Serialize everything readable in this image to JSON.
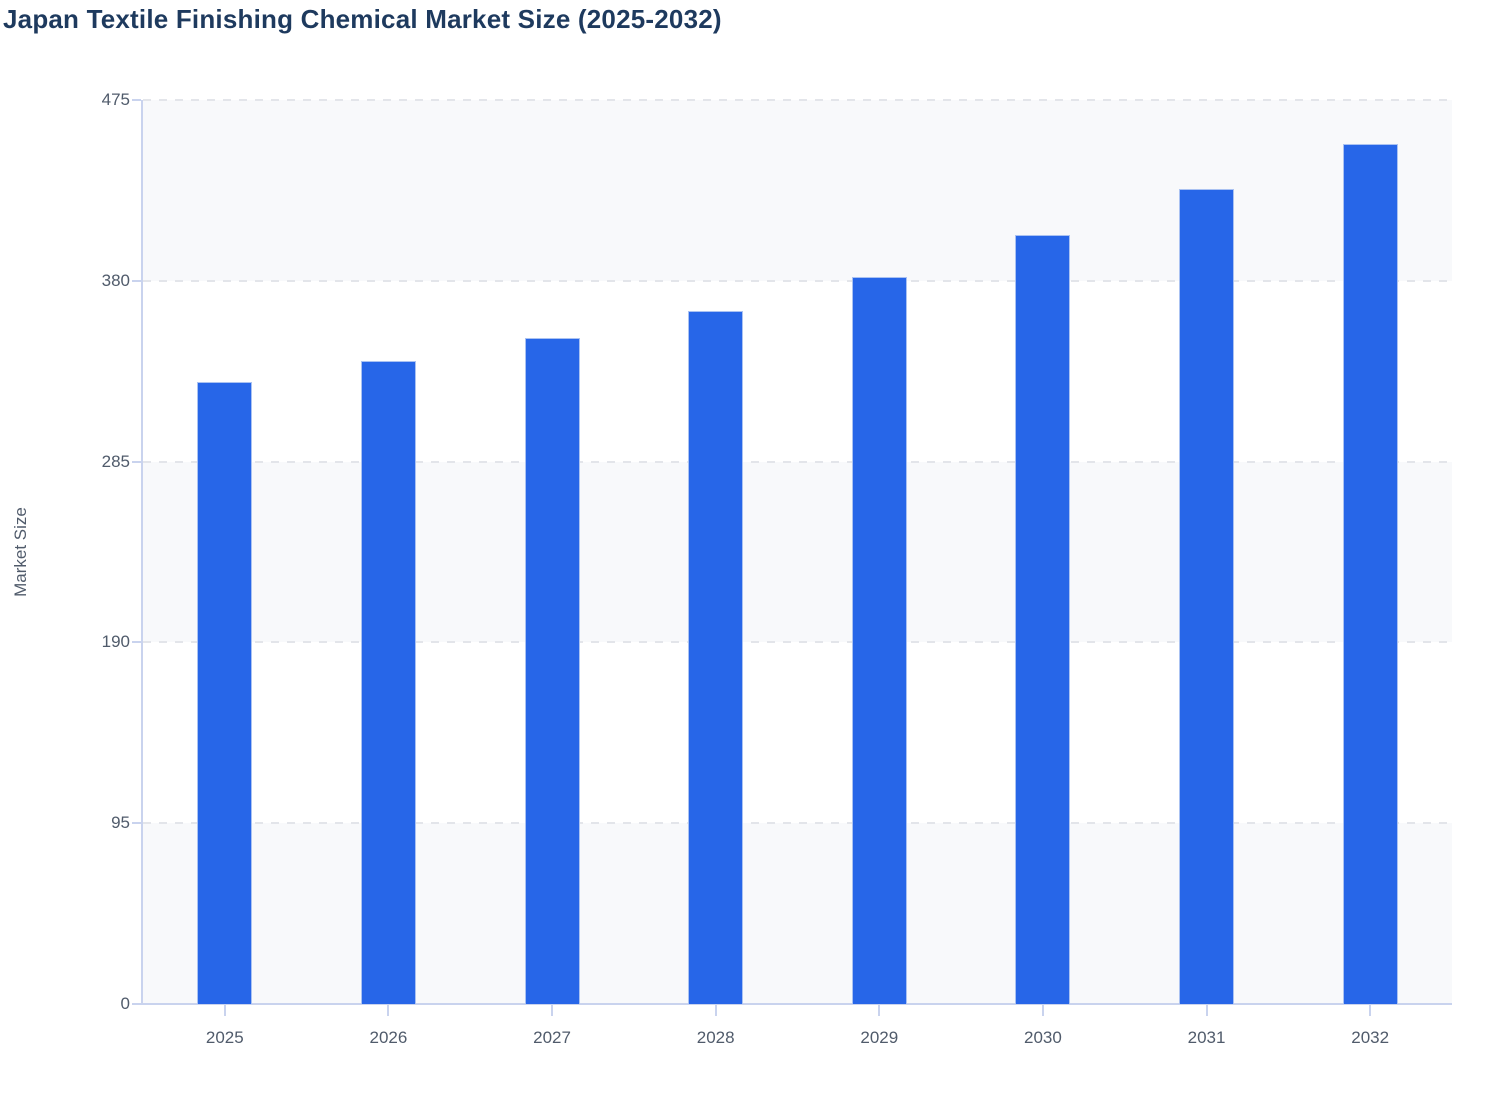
{
  "chart_data": {
    "type": "bar",
    "title": "Japan Textile Finishing Chemical Market Size (2025-2032)",
    "ylabel": "Market Size",
    "xlabel": "",
    "categories": [
      "2025",
      "2026",
      "2027",
      "2028",
      "2029",
      "2030",
      "2031",
      "2032"
    ],
    "values": [
      327,
      338,
      350,
      364,
      382,
      404,
      428,
      452
    ],
    "ylim": [
      0,
      475
    ],
    "yticks": [
      0,
      95,
      190,
      285,
      380,
      475
    ],
    "shaded_bands": [
      [
        380,
        475
      ],
      [
        190,
        285
      ],
      [
        0,
        95
      ]
    ],
    "grid": "horizontal-dashed",
    "legend": "none",
    "colors": {
      "bar": "#2766e8",
      "bar_edge": "#aac2f2",
      "band": "#f8f9fb",
      "gridline": "#e3e5ea",
      "axis": "#c9d3ee",
      "tick_text": "#505b6b",
      "title_text": "#1e3a5e"
    }
  }
}
